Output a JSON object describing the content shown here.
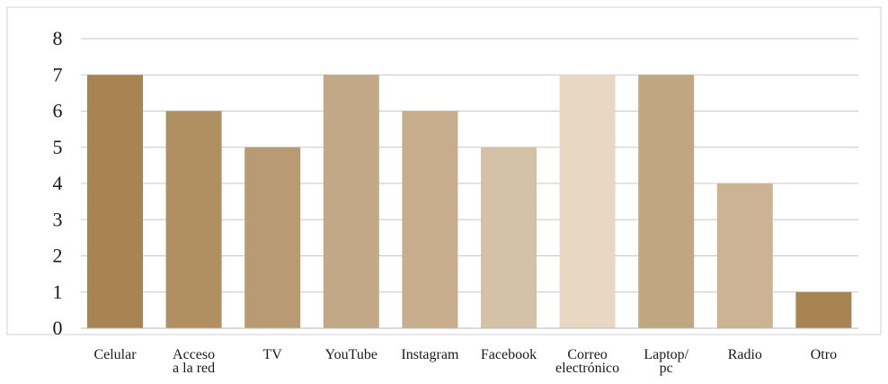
{
  "chart_data": {
    "type": "bar",
    "categories": [
      [
        "Celular"
      ],
      [
        "Acceso",
        "a la red"
      ],
      [
        "TV"
      ],
      [
        "YouTube"
      ],
      [
        "Instagram"
      ],
      [
        "Facebook"
      ],
      [
        "Correo",
        "electrónico"
      ],
      [
        "Laptop/",
        "pc"
      ],
      [
        "Radio"
      ],
      [
        "Otro"
      ]
    ],
    "values": [
      7,
      6,
      5,
      7,
      6,
      5,
      7,
      7,
      4,
      1
    ],
    "bar_colors": [
      "#a98453",
      "#b09060",
      "#b89b73",
      "#c2a886",
      "#c8ad8c",
      "#d5c1a6",
      "#e8d8c3",
      "#c0a782",
      "#ccb393",
      "#a98453"
    ],
    "ylim": [
      0,
      8
    ],
    "yticks": [
      0,
      1,
      2,
      3,
      4,
      5,
      6,
      7,
      8
    ],
    "grid": true,
    "title": "",
    "xlabel": "",
    "ylabel": ""
  }
}
